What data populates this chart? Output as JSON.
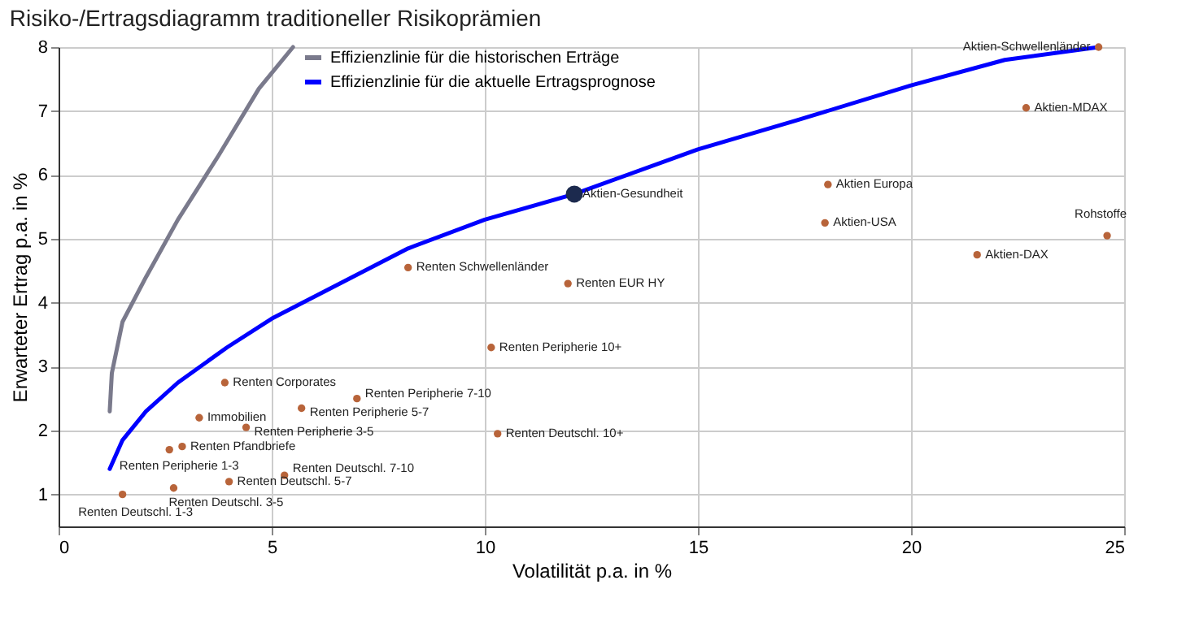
{
  "chart_data": {
    "type": "line",
    "title": "Risiko-/Ertragsdiagramm traditioneller Risikoprämien",
    "xlabel": "Volatilität p.a. in %",
    "ylabel": "Erwarteter Ertrag p.a. in %",
    "xlim": [
      0,
      25
    ],
    "xticks": [
      0,
      5,
      10,
      15,
      20,
      25
    ],
    "ylim": [
      0.5,
      8
    ],
    "yticks": [
      1,
      2,
      3,
      4,
      5,
      6,
      7,
      8
    ],
    "grid": true,
    "legend": "top left",
    "line_style": "solid",
    "series": [
      {
        "name": "Effizienzlinie für die historischen Erträge",
        "marker": "none",
        "color": "#7a7a8c",
        "x": [
          1.2,
          1.25,
          1.5,
          2.05,
          2.8,
          3.75,
          4.7,
          5.5
        ],
        "values": [
          2.3,
          2.9,
          3.7,
          4.4,
          5.3,
          6.3,
          7.35,
          8.0
        ]
      },
      {
        "name": "Effizienzlinie für die aktuelle Ertragsprognose",
        "marker": "none",
        "color": "#0000ff",
        "x": [
          1.2,
          1.5,
          2.05,
          2.8,
          3.95,
          5,
          6.6,
          8.2,
          10,
          12.1,
          15,
          17.3,
          20,
          22.2,
          24.4
        ],
        "values": [
          1.4,
          1.85,
          2.3,
          2.75,
          3.3,
          3.75,
          4.3,
          4.85,
          5.3,
          5.7,
          6.4,
          6.85,
          7.4,
          7.8,
          8.0
        ]
      },
      {
        "type": "scatter",
        "marker": "circle",
        "color": "#b8643a",
        "x": [
          1.5,
          2.7,
          4.0,
          5.3,
          2.6,
          2.9,
          3.3,
          4.4,
          3.9,
          5.7,
          7.0,
          10.3,
          10.15,
          8.2,
          11.95,
          24.4,
          22.7,
          18.05,
          17.98,
          21.55,
          24.6
        ],
        "values": [
          1.0,
          1.1,
          1.2,
          1.3,
          1.7,
          1.75,
          2.2,
          2.05,
          2.75,
          2.35,
          2.5,
          1.95,
          3.3,
          4.55,
          4.3,
          8.0,
          7.05,
          5.85,
          5.25,
          4.75,
          5.05
        ]
      },
      {
        "type": "scatter",
        "marker": "circle",
        "color": "#1c2a4e",
        "x": [
          12.1
        ],
        "values": [
          5.7
        ]
      }
    ],
    "annotations": [
      {
        "text": "Renten Deutschl. 1-3",
        "x": 1.5,
        "y": 1.0
      },
      {
        "text": "Renten Deutschl. 3-5",
        "x": 2.7,
        "y": 1.1
      },
      {
        "text": "Renten Deutschl. 5-7",
        "x": 4.0,
        "y": 1.2
      },
      {
        "text": "Renten Deutschl. 7-10",
        "x": 5.3,
        "y": 1.3
      },
      {
        "text": "Renten Peripherie 1-3",
        "x": 2.6,
        "y": 1.7
      },
      {
        "text": "Renten Pfandbriefe",
        "x": 2.9,
        "y": 1.75
      },
      {
        "text": "Immobilien",
        "x": 3.3,
        "y": 2.2
      },
      {
        "text": "Renten Peripherie 3-5",
        "x": 4.4,
        "y": 2.05
      },
      {
        "text": "Renten Corporates",
        "x": 3.9,
        "y": 2.75
      },
      {
        "text": "Renten Peripherie 5-7",
        "x": 5.7,
        "y": 2.35
      },
      {
        "text": "Renten Peripherie 7-10",
        "x": 7.0,
        "y": 2.5
      },
      {
        "text": "Renten Deutschl. 10+",
        "x": 10.3,
        "y": 1.95
      },
      {
        "text": "Renten Peripherie 10+",
        "x": 10.15,
        "y": 3.3
      },
      {
        "text": "Renten Schwellenländer",
        "x": 8.2,
        "y": 4.55
      },
      {
        "text": "Renten EUR HY",
        "x": 11.95,
        "y": 4.3
      },
      {
        "text": "Aktien-Gesundheit",
        "x": 12.1,
        "y": 5.7
      },
      {
        "text": "Aktien-Schwellenländer",
        "x": 24.4,
        "y": 8.0
      },
      {
        "text": "Aktien-MDAX",
        "x": 22.7,
        "y": 7.05
      },
      {
        "text": "Aktien Europa",
        "x": 18.05,
        "y": 5.85
      },
      {
        "text": "Aktien-USA",
        "x": 17.98,
        "y": 5.25
      },
      {
        "text": "Aktien-DAX",
        "x": 21.55,
        "y": 4.75
      },
      {
        "text": "Rohstoffe",
        "x": 24.6,
        "y": 5.05
      }
    ]
  }
}
